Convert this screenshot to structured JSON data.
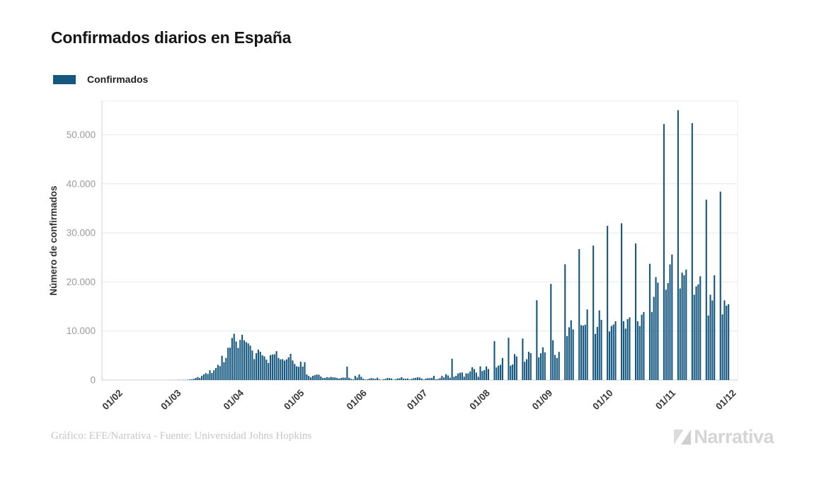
{
  "title": "Confirmados diarios en España",
  "legend": {
    "label": "Confirmados",
    "color": "#15587f"
  },
  "footer": {
    "credit": "Gráfico: EFE/Narrativa - Fuente: Universidad Johns Hopkins"
  },
  "logo": {
    "text": "Narrativa",
    "mark": "narrativa-n-mark",
    "color": "#d5d5d5"
  },
  "colors": {
    "bar": "#15587f",
    "grid": "#e8e8e8",
    "axis_line": "#cfcfcf",
    "plot_border": "#ededed",
    "y_tick_text": "#9b9b9b",
    "x_tick_text": "#383838",
    "axis_title_text": "#333333",
    "background": "#ffffff"
  },
  "chart_data": {
    "type": "bar",
    "title": "Confirmados diarios en España",
    "xlabel": "",
    "ylabel": "Número de confirmados",
    "legend_entries": [
      "Confirmados"
    ],
    "legend_position": "top-left",
    "grid": true,
    "bar_color": "#15587f",
    "x_start_date": "22/01/2020",
    "x_end_date": "01/12/2020",
    "x_tick_labels": [
      "01/02",
      "01/03",
      "01/04",
      "01/05",
      "01/06",
      "01/07",
      "01/08",
      "01/09",
      "01/10",
      "01/11",
      "01/12"
    ],
    "x_tick_day_index": [
      10,
      39,
      70,
      100,
      131,
      161,
      192,
      223,
      253,
      284,
      314
    ],
    "y_ticks": [
      0,
      10000,
      20000,
      30000,
      40000,
      50000
    ],
    "y_tick_labels": [
      "0",
      "10.000",
      "20.000",
      "30.000",
      "40.000",
      "50.000"
    ],
    "ylim": [
      0,
      56850
    ],
    "notable_values": {
      "first_wave_peak_late_march": 9444,
      "monday_2020_10_26": 52188,
      "monday_2020_11_02": 55019,
      "monday_2020_11_09": 52386
    },
    "series": [
      {
        "name": "Confirmados",
        "daily_values": [
          0,
          0,
          0,
          0,
          0,
          0,
          0,
          0,
          0,
          0,
          0,
          0,
          0,
          0,
          0,
          0,
          0,
          0,
          0,
          0,
          0,
          0,
          0,
          0,
          0,
          0,
          0,
          0,
          0,
          0,
          0,
          0,
          0,
          0,
          2,
          4,
          9,
          17,
          32,
          20,
          48,
          37,
          67,
          117,
          159,
          240,
          430,
          615,
          435,
          857,
          1159,
          1407,
          1227,
          2000,
          1438,
          1987,
          2446,
          3089,
          2833,
          4946,
          3646,
          4517,
          6584,
          6599,
          8578,
          9444,
          7871,
          6549,
          8189,
          9222,
          8102,
          7719,
          7472,
          7026,
          6023,
          4273,
          5478,
          6180,
          5756,
          5051,
          4830,
          4167,
          3477,
          5092,
          5183,
          5252,
          5891,
          4499,
          4218,
          4266,
          3968,
          4211,
          4635,
          5340,
          3995,
          3272,
          2793,
          2706,
          3740,
          2740,
          3648,
          1147,
          838,
          545,
          867,
          996,
          1122,
          1095,
          721,
          421,
          426,
          594,
          506,
          643,
          549,
          539,
          421,
          295,
          431,
          518,
          482,
          2732,
          466,
          246,
          132,
          859,
          510,
          1137,
          658,
          271,
          96,
          137,
          294,
          394,
          334,
          240,
          480,
          148,
          48,
          167,
          249,
          427,
          396,
          323,
          56,
          181,
          340,
          355,
          585,
          307,
          264,
          334,
          126,
          249,
          400,
          443,
          564,
          493,
          301,
          108,
          301,
          388,
          385,
          441,
          852,
          164,
          201,
          383,
          852,
          543,
          1195,
          944,
          480,
          4341,
          666,
          875,
          1361,
          1486,
          1547,
          685,
          1373,
          1358,
          1767,
          2615,
          2255,
          1525,
          672,
          2789,
          1828,
          2031,
          2789,
          2255,
          0,
          0,
          7935,
          2578,
          2953,
          3103,
          4507,
          0,
          0,
          8618,
          2935,
          3172,
          5302,
          4817,
          0,
          0,
          8459,
          3715,
          4250,
          5758,
          5479,
          0,
          0,
          16269,
          4620,
          5461,
          6671,
          5654,
          0,
          0,
          19602,
          8115,
          5114,
          4503,
          5737,
          0,
          0,
          23605,
          8964,
          10764,
          12183,
          10328,
          0,
          0,
          26696,
          11193,
          11095,
          11291,
          14389,
          0,
          0,
          27404,
          9419,
          10853,
          14208,
          12272,
          0,
          0,
          31428,
          9906,
          11016,
          11325,
          11973,
          0,
          0,
          31963,
          11998,
          10491,
          12423,
          12788,
          0,
          0,
          27856,
          11970,
          11016,
          13318,
          13873,
          0,
          0,
          23700,
          13873,
          16973,
          20986,
          19851,
          0,
          0,
          52188,
          18418,
          19765,
          23580,
          25595,
          0,
          0,
          55019,
          18669,
          21908,
          21371,
          22516,
          0,
          0,
          52386,
          17395,
          19096,
          19511,
          21159,
          0,
          0,
          36771,
          13159,
          17395,
          16233,
          21371,
          0,
          0,
          38419,
          13393,
          16233,
          15156,
          15457,
          0,
          0,
          0,
          0
        ]
      }
    ]
  }
}
